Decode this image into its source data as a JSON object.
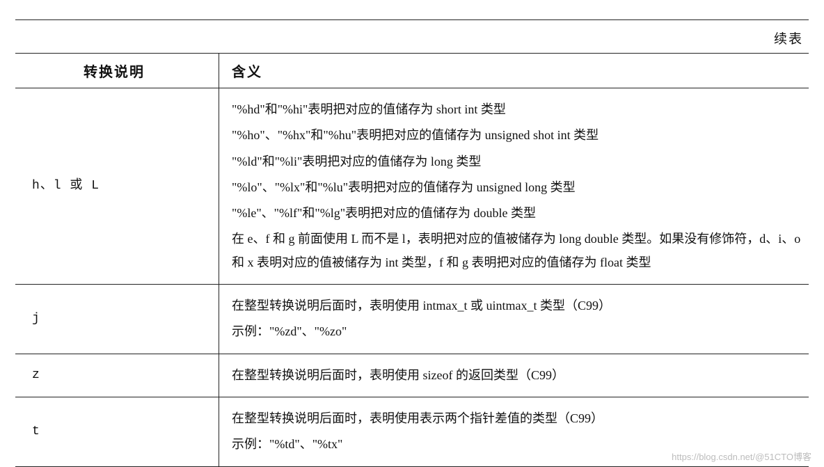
{
  "continued_label": "续表",
  "header": {
    "c1": "转换说明",
    "c2": "含义"
  },
  "rows": [
    {
      "spec": "h、l 或 L",
      "lines": [
        "\"%hd\"和\"%hi\"表明把对应的值储存为 short int 类型",
        "\"%ho\"、\"%hx\"和\"%hu\"表明把对应的值储存为 unsigned shot int 类型",
        "\"%ld\"和\"%li\"表明把对应的值储存为 long 类型",
        "\"%lo\"、\"%lx\"和\"%lu\"表明把对应的值储存为 unsigned long 类型",
        "\"%le\"、\"%lf\"和\"%lg\"表明把对应的值储存为 double 类型",
        "在 e、f 和 g 前面使用 L 而不是 l，表明把对应的值被储存为 long double 类型。如果没有修饰符，d、i、o 和 x 表明对应的值被储存为 int 类型，f 和 g 表明把对应的值储存为 float 类型"
      ]
    },
    {
      "spec": "j",
      "lines": [
        "在整型转换说明后面时，表明使用 intmax_t 或 uintmax_t 类型（C99）",
        "示例：\"%zd\"、\"%zo\""
      ]
    },
    {
      "spec": "z",
      "lines": [
        "在整型转换说明后面时，表明使用 sizeof 的返回类型（C99）"
      ]
    },
    {
      "spec": "t",
      "lines": [
        "在整型转换说明后面时，表明使用表示两个指针差值的类型（C99）",
        "示例：\"%td\"、\"%tx\""
      ]
    }
  ],
  "watermark": "https://blog.csdn.net/@51CTO博客"
}
